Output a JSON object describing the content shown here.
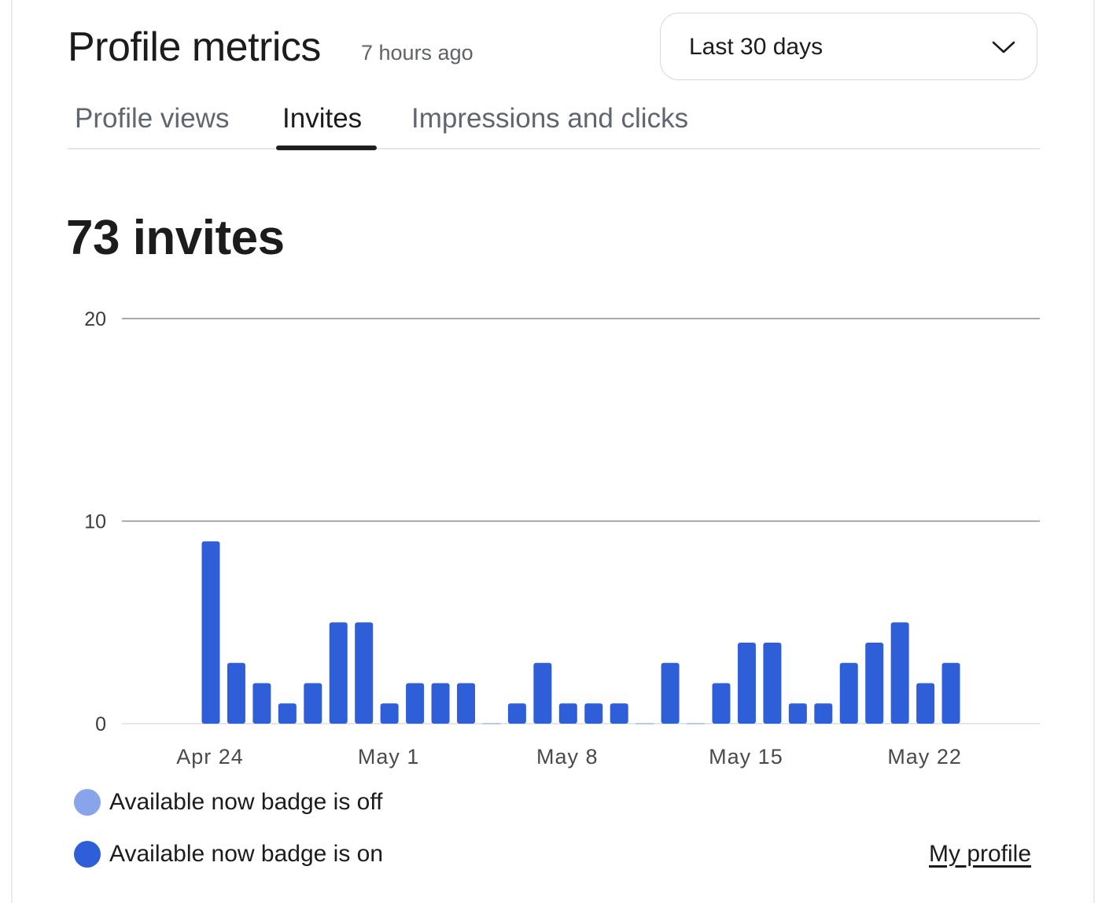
{
  "header": {
    "title": "Profile metrics",
    "updated": "7 hours ago",
    "range": {
      "selected": "Last 30 days",
      "icon": "chevron-down-icon"
    }
  },
  "tabs": [
    {
      "label": "Profile views",
      "active": false
    },
    {
      "label": "Invites",
      "active": true
    },
    {
      "label": "Impressions and clicks",
      "active": false
    }
  ],
  "summary": {
    "total_label": "73 invites"
  },
  "chart_data": {
    "type": "bar",
    "categories": [
      "Apr 24",
      "Apr 25",
      "Apr 26",
      "Apr 27",
      "Apr 28",
      "Apr 29",
      "Apr 30",
      "May 1",
      "May 2",
      "May 3",
      "May 4",
      "May 5",
      "May 6",
      "May 7",
      "May 8",
      "May 9",
      "May 10",
      "May 11",
      "May 12",
      "May 13",
      "May 14",
      "May 15",
      "May 16",
      "May 17",
      "May 18",
      "May 19",
      "May 20",
      "May 21",
      "May 22",
      "May 23"
    ],
    "series": [
      {
        "name": "Available now badge is off",
        "color": "#8aa4ec",
        "values": [
          0,
          0,
          0,
          0,
          0,
          0,
          0,
          0,
          0,
          0,
          0,
          0,
          0,
          0,
          0,
          0,
          0,
          0,
          0,
          0,
          0,
          0,
          0,
          0,
          0,
          0,
          0,
          0,
          0,
          0
        ]
      },
      {
        "name": "Available now badge is on",
        "color": "#2f5fd8",
        "values": [
          9,
          3,
          2,
          1,
          2,
          5,
          5,
          1,
          2,
          2,
          2,
          0,
          1,
          3,
          1,
          1,
          1,
          0,
          3,
          0,
          2,
          4,
          4,
          1,
          1,
          3,
          4,
          5,
          2,
          3
        ]
      }
    ],
    "x_tick_labels": [
      "Apr 24",
      "May 1",
      "May 8",
      "May 15",
      "May 22"
    ],
    "y_tick_labels": [
      "0",
      "10",
      "20"
    ],
    "ylim": [
      0,
      20
    ],
    "grid": true,
    "legend_placement": "bottom-left"
  },
  "legend": [
    {
      "label": "Available now badge is off",
      "color": "#8aa4ec"
    },
    {
      "label": "Available now badge is on",
      "color": "#2f5fd8"
    }
  ],
  "footer": {
    "link": "My profile"
  }
}
